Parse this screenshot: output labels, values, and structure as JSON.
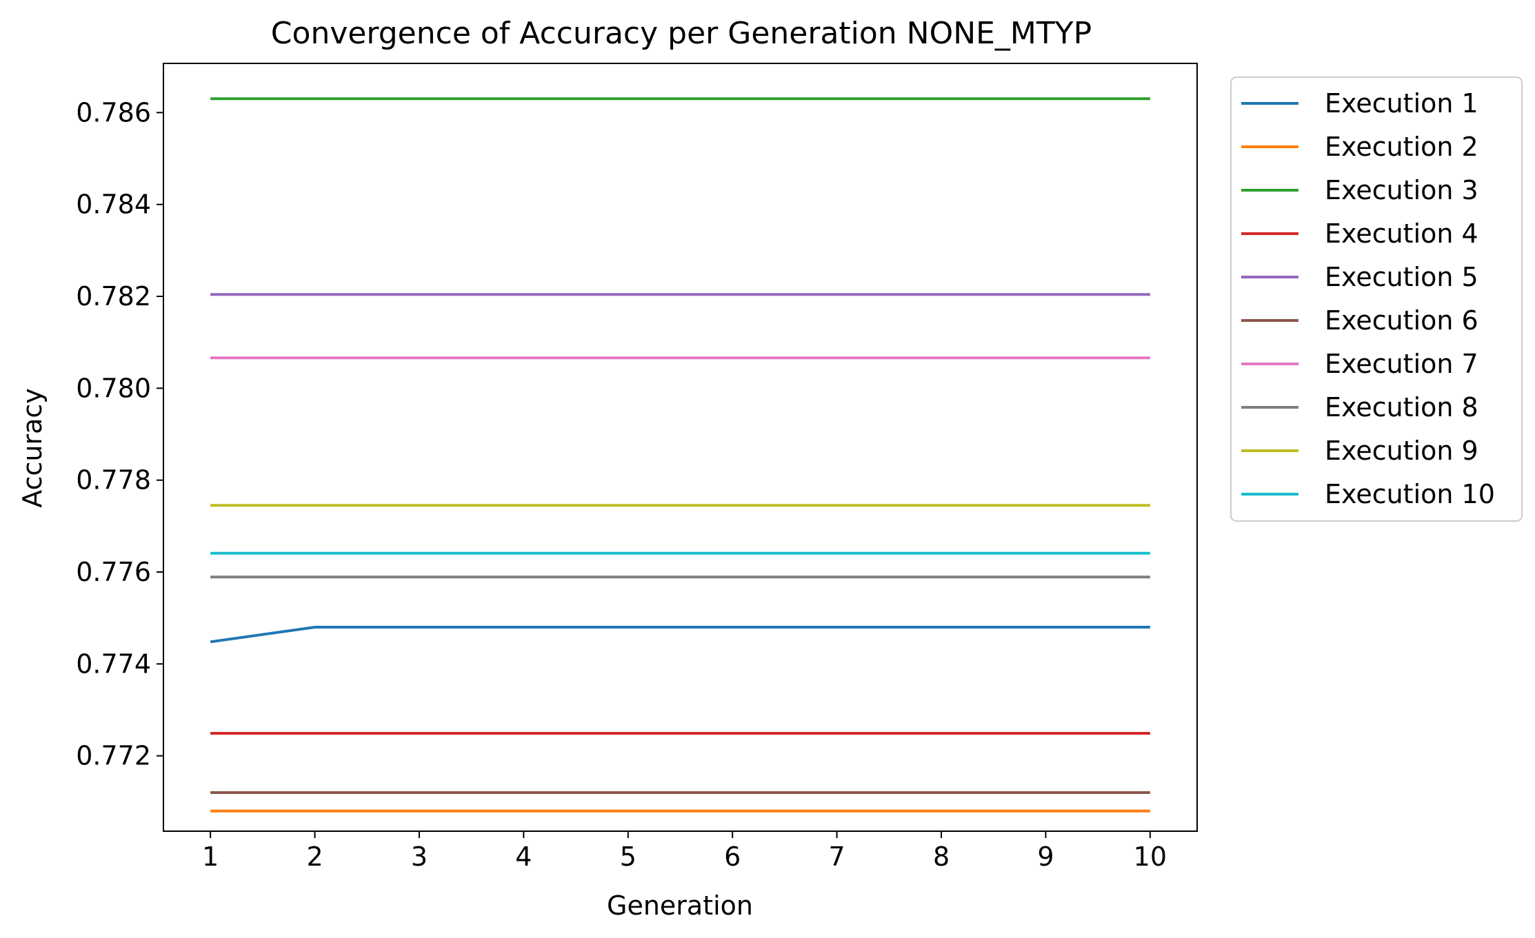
{
  "chart_data": {
    "type": "line",
    "title": "Convergence of Accuracy per Generation NONE_MTYP",
    "xlabel": "Generation",
    "ylabel": "Accuracy",
    "x": [
      1,
      2,
      3,
      4,
      5,
      6,
      7,
      8,
      9,
      10
    ],
    "xticks": [
      "1",
      "2",
      "3",
      "4",
      "5",
      "6",
      "7",
      "8",
      "9",
      "10"
    ],
    "yticks": [
      "0.772",
      "0.774",
      "0.776",
      "0.778",
      "0.780",
      "0.782",
      "0.784",
      "0.786"
    ],
    "xlim": [
      0.55,
      10.45
    ],
    "ylim": [
      0.77036,
      0.78707
    ],
    "grid": false,
    "legend_position": "outside-top-right",
    "series": [
      {
        "name": "Execution 1",
        "color": "#1f77b4",
        "values": [
          0.77448,
          0.7748,
          0.7748,
          0.7748,
          0.7748,
          0.7748,
          0.7748,
          0.7748,
          0.7748,
          0.7748
        ]
      },
      {
        "name": "Execution 2",
        "color": "#ff7f0e",
        "values": [
          0.7708,
          0.7708,
          0.7708,
          0.7708,
          0.7708,
          0.7708,
          0.7708,
          0.7708,
          0.7708,
          0.7708
        ]
      },
      {
        "name": "Execution 3",
        "color": "#2ca02c",
        "values": [
          0.7863,
          0.7863,
          0.7863,
          0.7863,
          0.7863,
          0.7863,
          0.7863,
          0.7863,
          0.7863,
          0.7863
        ]
      },
      {
        "name": "Execution 4",
        "color": "#d62728",
        "values": [
          0.77249,
          0.77249,
          0.77249,
          0.77249,
          0.77249,
          0.77249,
          0.77249,
          0.77249,
          0.77249,
          0.77249
        ]
      },
      {
        "name": "Execution 5",
        "color": "#9467bd",
        "values": [
          0.78204,
          0.78204,
          0.78204,
          0.78204,
          0.78204,
          0.78204,
          0.78204,
          0.78204,
          0.78204,
          0.78204
        ]
      },
      {
        "name": "Execution 6",
        "color": "#8c564b",
        "values": [
          0.7712,
          0.7712,
          0.7712,
          0.7712,
          0.7712,
          0.7712,
          0.7712,
          0.7712,
          0.7712,
          0.7712
        ]
      },
      {
        "name": "Execution 7",
        "color": "#e377c2",
        "values": [
          0.78066,
          0.78066,
          0.78066,
          0.78066,
          0.78066,
          0.78066,
          0.78066,
          0.78066,
          0.78066,
          0.78066
        ]
      },
      {
        "name": "Execution 8",
        "color": "#7f7f7f",
        "values": [
          0.77589,
          0.77589,
          0.77589,
          0.77589,
          0.77589,
          0.77589,
          0.77589,
          0.77589,
          0.77589,
          0.77589
        ]
      },
      {
        "name": "Execution 9",
        "color": "#bcbd22",
        "values": [
          0.77745,
          0.77745,
          0.77745,
          0.77745,
          0.77745,
          0.77745,
          0.77745,
          0.77745,
          0.77745,
          0.77745
        ]
      },
      {
        "name": "Execution 10",
        "color": "#17becf",
        "values": [
          0.77641,
          0.77641,
          0.77641,
          0.77641,
          0.77641,
          0.77641,
          0.77641,
          0.77641,
          0.77641,
          0.77641
        ]
      }
    ]
  }
}
